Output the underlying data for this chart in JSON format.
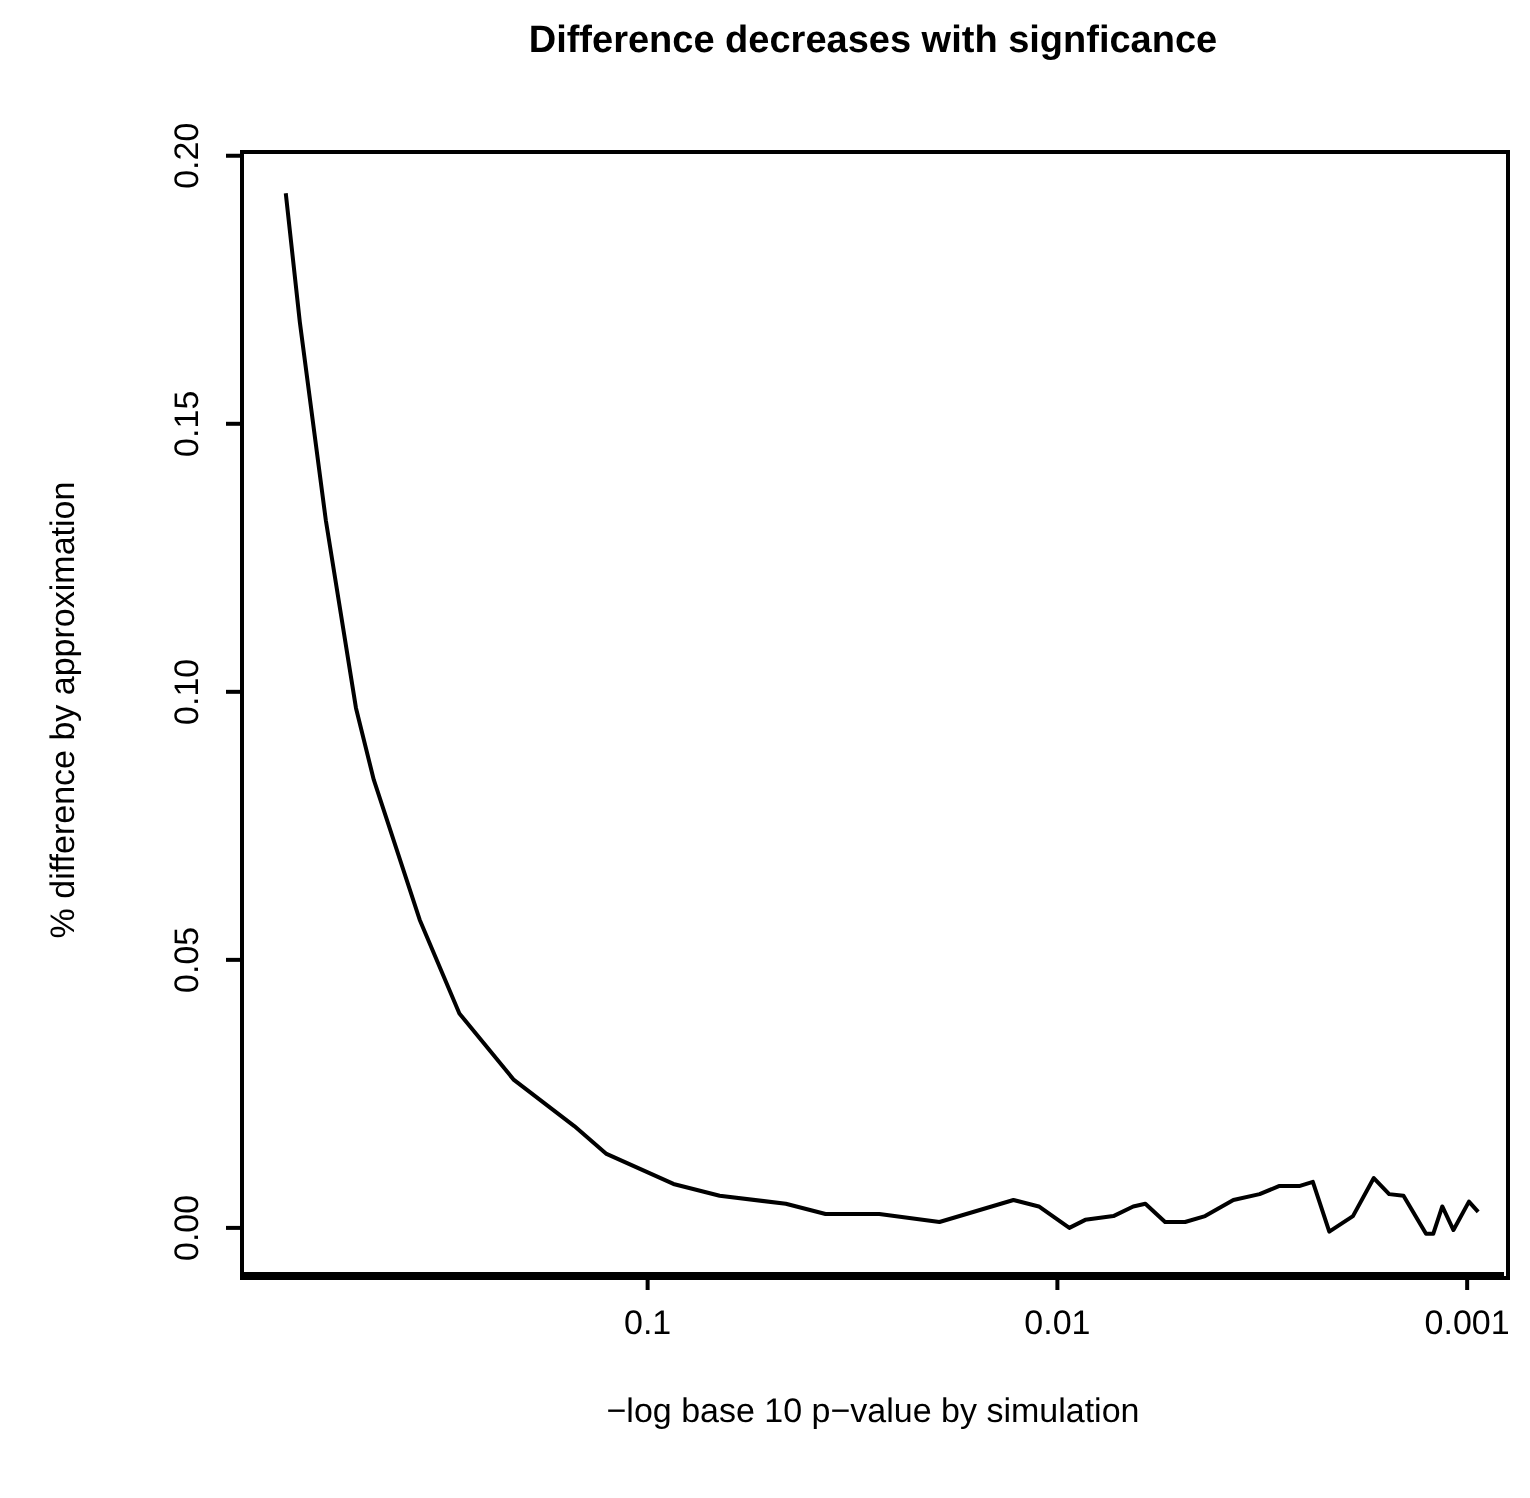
{
  "chart_data": {
    "type": "line",
    "title": "Difference decreases with signficance",
    "xlabel": "−log base 10 p−value by simulation",
    "ylabel": "% difference by approximation",
    "x": [
      0.764,
      0.706,
      0.61,
      0.515,
      0.466,
      0.36,
      0.288,
      0.212,
      0.151,
      0.126,
      0.0865,
      0.0667,
      0.046,
      0.0368,
      0.0272,
      0.0194,
      0.0128,
      0.0111,
      0.00935,
      0.00855,
      0.0073,
      0.00653,
      0.0061,
      0.00546,
      0.00488,
      0.00436,
      0.00372,
      0.00321,
      0.00288,
      0.00257,
      0.00238,
      0.00217,
      0.0019,
      0.00169,
      0.00155,
      0.00143,
      0.00126,
      0.00121,
      0.00115,
      0.00108,
      0.00099,
      0.00094
    ],
    "series": [
      {
        "color": "#000000",
        "values": [
          0.193,
          0.169,
          0.132,
          0.097,
          0.0836,
          0.0575,
          0.04,
          0.0276,
          0.019,
          0.0138,
          0.0082,
          0.006,
          0.0045,
          0.0026,
          0.0026,
          0.0011,
          0.0052,
          0.004,
          0.0,
          0.0015,
          0.0022,
          0.004,
          0.0045,
          0.0011,
          0.0011,
          0.0022,
          0.0052,
          0.0063,
          0.0078,
          0.0078,
          0.0086,
          -0.0007,
          0.0022,
          0.0093,
          0.0063,
          0.006,
          -0.0011,
          -0.0011,
          0.004,
          -0.0004,
          0.0049,
          0.003
        ]
      }
    ],
    "xlim": [
      0.977,
      0.000813
    ],
    "xticks": [
      0.1,
      0.01,
      0.001
    ],
    "log": "x",
    "ylim": [
      -0.0086,
      0.2007
    ],
    "yticks": [
      {
        "value": 0,
        "label": "0.00"
      },
      {
        "value": 0.05,
        "label": "0.05"
      },
      {
        "value": 0.1,
        "label": "0.10"
      },
      {
        "value": 0.15,
        "label": "0.15"
      },
      {
        "value": 0.2,
        "label": "0.20"
      }
    ],
    "grid": false,
    "marker": "none",
    "line_style": "solid"
  }
}
